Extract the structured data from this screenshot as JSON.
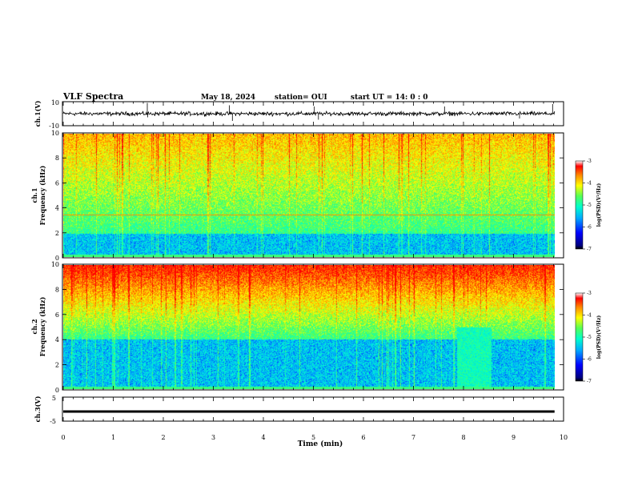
{
  "header": {
    "title": "VLF Spectra",
    "date": "May 18, 2024",
    "station": "station= OUI",
    "start_time": "start  UT =   14: 0  : 0"
  },
  "chart_data": [
    {
      "type": "line",
      "panel": "ch1-waveform",
      "ylabel": "ch.1(V)",
      "ylim": [
        -10,
        10
      ],
      "yticks": [
        "10",
        "-10"
      ],
      "trace_color": "#000000",
      "baseline": 0,
      "spikes": [
        {
          "t": 1.68,
          "v": 9
        },
        {
          "t": 1.69,
          "v": -3
        },
        {
          "t": 3.32,
          "v": 7
        },
        {
          "t": 3.38,
          "v": -6
        },
        {
          "t": 5.02,
          "v": 6
        },
        {
          "t": 5.1,
          "v": -5
        },
        {
          "t": 7.62,
          "v": 6
        },
        {
          "t": 9.12,
          "v": -4
        },
        {
          "t": 9.78,
          "v": 8
        }
      ]
    },
    {
      "type": "heatmap",
      "panel": "ch1-spectrogram",
      "ylabel": "ch.1\nFrequency (kHz)",
      "ylabel_lines": [
        "ch.1",
        "Frequency (kHz)"
      ],
      "ylim": [
        0,
        10
      ],
      "yticks": [
        "0",
        "2",
        "4",
        "6",
        "8",
        "10"
      ],
      "colorbar": {
        "label": "log(PSD)(V²/Hz)",
        "range": [
          -7,
          -3
        ],
        "ticks": [
          "-3",
          "-4",
          "-5",
          "-6",
          "-7"
        ]
      },
      "features": {
        "blue_band_khz": [
          0.2,
          1.9
        ],
        "horizontal_line_khz": 3.45,
        "dominant_level_high_freq": -4.3
      }
    },
    {
      "type": "heatmap",
      "panel": "ch2-spectrogram",
      "ylabel": "ch.2\nFrequency (kHz)",
      "ylabel_lines": [
        "ch.2",
        "Frequency (kHz)"
      ],
      "ylim": [
        0,
        10
      ],
      "yticks": [
        "0",
        "2",
        "4",
        "6",
        "8",
        "10"
      ],
      "colorbar": {
        "label": "log(PSD)(V²/Hz)",
        "range": [
          -7,
          -3
        ],
        "ticks": [
          "-3",
          "-4",
          "-5",
          "-6",
          "-7"
        ]
      },
      "features": {
        "blue_band_khz": [
          0.2,
          4.0
        ],
        "gap_minutes": [
          8.0,
          8.7
        ],
        "dominant_level_high_freq": -3.6
      }
    },
    {
      "type": "line",
      "panel": "ch3-waveform",
      "ylabel": "ch.3(V)",
      "ylim": [
        -5,
        5
      ],
      "yticks": [
        "5",
        "-5"
      ],
      "trace_value": -1,
      "xlabel": "Time  (min)",
      "xlim": [
        0,
        10
      ],
      "xticks": [
        "0",
        "1",
        "2",
        "3",
        "4",
        "5",
        "6",
        "7",
        "8",
        "9",
        "10"
      ]
    }
  ],
  "colors": {
    "colormap": [
      "#000080",
      "#0000ff",
      "#00aaff",
      "#00ffcc",
      "#55ff55",
      "#ffff00",
      "#ff8800",
      "#ff0000",
      "#ffffff"
    ]
  }
}
